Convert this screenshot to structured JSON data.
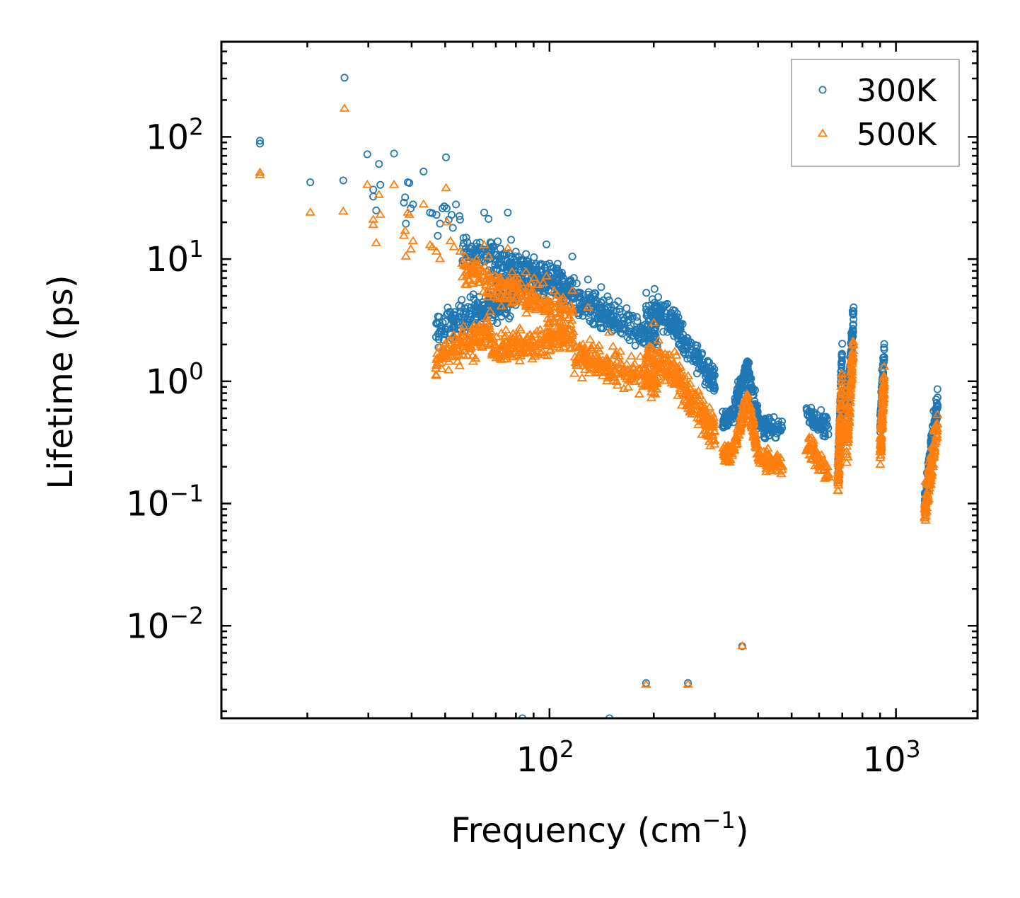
{
  "chart_data": {
    "type": "scatter",
    "title": "",
    "xlabel": "Frequency (cm",
    "xlabel_sup": "−1",
    "xlabel_tail": ")",
    "ylabel": "Lifetime (ps)",
    "xscale": "log",
    "yscale": "log",
    "xlim": [
      11.3,
      1720
    ],
    "ylim": [
      0.00175,
      600
    ],
    "x_ticks": [
      {
        "value": 100,
        "base": "10",
        "exp": "2"
      },
      {
        "value": 1000,
        "base": "10",
        "exp": "3"
      }
    ],
    "y_ticks": [
      {
        "value": 0.01,
        "base": "10",
        "exp": "−2"
      },
      {
        "value": 0.1,
        "base": "10",
        "exp": "−1"
      },
      {
        "value": 1,
        "base": "10",
        "exp": "0"
      },
      {
        "value": 10,
        "base": "10",
        "exp": "1"
      },
      {
        "value": 100,
        "base": "10",
        "exp": "2"
      }
    ],
    "legend_position": "top-right",
    "series": [
      {
        "name": "300K",
        "marker": "circle",
        "color": "#1f77b4",
        "points": [
          [
            14.6,
            93
          ],
          [
            14.6,
            88
          ],
          [
            20.4,
            42.5
          ],
          [
            25.6,
            305
          ],
          [
            25.4,
            44
          ],
          [
            29.8,
            72
          ],
          [
            31.0,
            37
          ],
          [
            31.0,
            32.5
          ],
          [
            31.6,
            25
          ],
          [
            32.2,
            60
          ],
          [
            32.5,
            40.5
          ],
          [
            35.6,
            73
          ],
          [
            38.0,
            29
          ],
          [
            38.3,
            32
          ],
          [
            38.5,
            19.5
          ],
          [
            39.0,
            42.5
          ],
          [
            39.4,
            42
          ],
          [
            39.8,
            26
          ],
          [
            40.4,
            28
          ],
          [
            43.3,
            52
          ],
          [
            45.2,
            24
          ],
          [
            45.9,
            23.7
          ],
          [
            47.2,
            23
          ],
          [
            47.6,
            15.5
          ],
          [
            48.3,
            19.5
          ],
          [
            49.1,
            26
          ],
          [
            49.7,
            27
          ],
          [
            50.3,
            68
          ],
          [
            50.5,
            26
          ],
          [
            51.2,
            21
          ],
          [
            52.2,
            23
          ],
          [
            52.6,
            18
          ],
          [
            53.7,
            28
          ],
          [
            55.0,
            22.5
          ],
          [
            55.2,
            21
          ],
          [
            57.5,
            15
          ],
          [
            61.6,
            13.5
          ],
          [
            64.8,
            24
          ],
          [
            66.7,
            21.3
          ],
          [
            67.5,
            13.7
          ],
          [
            75.8,
            24
          ],
          [
            77.5,
            14.4
          ],
          [
            80.0,
            11.5
          ],
          [
            85.6,
            11
          ],
          [
            98.0,
            13.2
          ],
          [
            116.4,
            10.5
          ],
          [
            129.1,
            6.8
          ],
          [
            141,
            5.9
          ],
          [
            148.6,
            4.6
          ],
          [
            201,
            5.7
          ],
          [
            360,
            0.0068
          ],
          [
            190,
            0.0034
          ],
          [
            251,
            0.0034
          ],
          [
            83.5,
            0.00175
          ],
          [
            149,
            0.00175
          ]
        ],
        "bands": [
          {
            "x0": 47,
            "x1": 80,
            "y0": 2.6,
            "y1": 5.0,
            "n": 210,
            "spread": 1.0
          },
          {
            "x0": 56,
            "x1": 110,
            "y0": 12,
            "y1": 7,
            "n": 200,
            "spread": 0.8
          },
          {
            "x0": 70,
            "x1": 118,
            "y0": 6.5,
            "y1": 5.5,
            "n": 160,
            "spread": 0.9
          },
          {
            "x0": 118,
            "x1": 205,
            "y0": 4.5,
            "y1": 2.3,
            "n": 230,
            "spread": 0.9
          },
          {
            "x0": 190,
            "x1": 240,
            "y0": 4.2,
            "y1": 2.8,
            "n": 110,
            "spread": 0.8
          },
          {
            "x0": 230,
            "x1": 300,
            "y0": 2.7,
            "y1": 1.0,
            "n": 140,
            "spread": 0.9
          },
          {
            "x0": 316,
            "x1": 342,
            "y0": 0.47,
            "y1": 0.55,
            "n": 60,
            "spread": 0.5
          },
          {
            "x0": 342,
            "x1": 372,
            "y0": 0.6,
            "y1": 1.3,
            "n": 70,
            "spread": 0.6
          },
          {
            "x0": 372,
            "x1": 400,
            "y0": 1.3,
            "y1": 0.5,
            "n": 70,
            "spread": 0.6
          },
          {
            "x0": 400,
            "x1": 470,
            "y0": 0.45,
            "y1": 0.4,
            "n": 70,
            "spread": 0.6
          },
          {
            "x0": 550,
            "x1": 640,
            "y0": 0.55,
            "y1": 0.42,
            "n": 70,
            "spread": 0.6
          },
          {
            "x0": 680,
            "x1": 700,
            "y0": 0.15,
            "y1": 2.0,
            "n": 90,
            "spread": 0.9
          },
          {
            "x0": 720,
            "x1": 755,
            "y0": 0.5,
            "y1": 3.5,
            "n": 80,
            "spread": 0.9
          },
          {
            "x0": 900,
            "x1": 925,
            "y0": 0.42,
            "y1": 1.8,
            "n": 80,
            "spread": 0.8
          },
          {
            "x0": 1210,
            "x1": 1320,
            "y0": 0.1,
            "y1": 0.7,
            "n": 120,
            "spread": 0.9
          }
        ]
      },
      {
        "name": "500K",
        "marker": "triangle",
        "color": "#ff7f0e",
        "points": [
          [
            14.6,
            51
          ],
          [
            14.6,
            48.5
          ],
          [
            20.4,
            24
          ],
          [
            25.6,
            170
          ],
          [
            25.4,
            24.5
          ],
          [
            29.8,
            40.5
          ],
          [
            31.0,
            21
          ],
          [
            31.0,
            19
          ],
          [
            31.6,
            13.5
          ],
          [
            32.2,
            33.5
          ],
          [
            32.5,
            23
          ],
          [
            35.6,
            40.5
          ],
          [
            38.0,
            15.5
          ],
          [
            38.3,
            17
          ],
          [
            38.5,
            10.5
          ],
          [
            39.0,
            24
          ],
          [
            39.4,
            23
          ],
          [
            39.8,
            12
          ],
          [
            40.4,
            14
          ],
          [
            43.3,
            28
          ],
          [
            45.2,
            13
          ],
          [
            45.9,
            12.5
          ],
          [
            47.2,
            11.5
          ],
          [
            48.3,
            10
          ],
          [
            50.3,
            38
          ],
          [
            50.6,
            20
          ],
          [
            51.8,
            14
          ],
          [
            53.0,
            12.5
          ],
          [
            55.3,
            11.5
          ],
          [
            57.2,
            10.5
          ],
          [
            61.6,
            7.8
          ],
          [
            64.8,
            13
          ],
          [
            66.7,
            10.5
          ],
          [
            75.8,
            12.2
          ],
          [
            78.0,
            7.8
          ],
          [
            85.6,
            7.8
          ],
          [
            98,
            7.2
          ],
          [
            116.4,
            5.5
          ],
          [
            129.1,
            4
          ],
          [
            148.6,
            2.5
          ],
          [
            200,
            3.0
          ],
          [
            360,
            0.0068
          ],
          [
            190,
            0.0033
          ],
          [
            251,
            0.0033
          ]
        ],
        "bands": [
          {
            "x0": 47,
            "x1": 68,
            "y0": 1.5,
            "y1": 2.6,
            "n": 150,
            "spread": 1.0
          },
          {
            "x0": 56,
            "x1": 118,
            "y0": 8,
            "y1": 3.5,
            "n": 220,
            "spread": 0.9
          },
          {
            "x0": 68,
            "x1": 118,
            "y0": 1.8,
            "y1": 2.4,
            "n": 200,
            "spread": 0.9
          },
          {
            "x0": 118,
            "x1": 205,
            "y0": 1.6,
            "y1": 1.0,
            "n": 220,
            "spread": 1.0
          },
          {
            "x0": 190,
            "x1": 240,
            "y0": 1.6,
            "y1": 1.1,
            "n": 110,
            "spread": 0.9
          },
          {
            "x0": 230,
            "x1": 300,
            "y0": 1.1,
            "y1": 0.38,
            "n": 140,
            "spread": 1.0
          },
          {
            "x0": 316,
            "x1": 342,
            "y0": 0.25,
            "y1": 0.28,
            "n": 60,
            "spread": 0.5
          },
          {
            "x0": 342,
            "x1": 372,
            "y0": 0.3,
            "y1": 0.7,
            "n": 70,
            "spread": 0.6
          },
          {
            "x0": 372,
            "x1": 400,
            "y0": 0.7,
            "y1": 0.26,
            "n": 70,
            "spread": 0.6
          },
          {
            "x0": 400,
            "x1": 470,
            "y0": 0.24,
            "y1": 0.2,
            "n": 70,
            "spread": 0.6
          },
          {
            "x0": 550,
            "x1": 640,
            "y0": 0.32,
            "y1": 0.17,
            "n": 70,
            "spread": 0.6
          },
          {
            "x0": 680,
            "x1": 700,
            "y0": 0.13,
            "y1": 1.2,
            "n": 90,
            "spread": 0.9
          },
          {
            "x0": 720,
            "x1": 755,
            "y0": 0.25,
            "y1": 2.3,
            "n": 80,
            "spread": 0.9
          },
          {
            "x0": 900,
            "x1": 925,
            "y0": 0.25,
            "y1": 1.0,
            "n": 80,
            "spread": 0.8
          },
          {
            "x0": 1210,
            "x1": 1320,
            "y0": 0.09,
            "y1": 0.45,
            "n": 120,
            "spread": 0.9
          }
        ]
      }
    ]
  }
}
